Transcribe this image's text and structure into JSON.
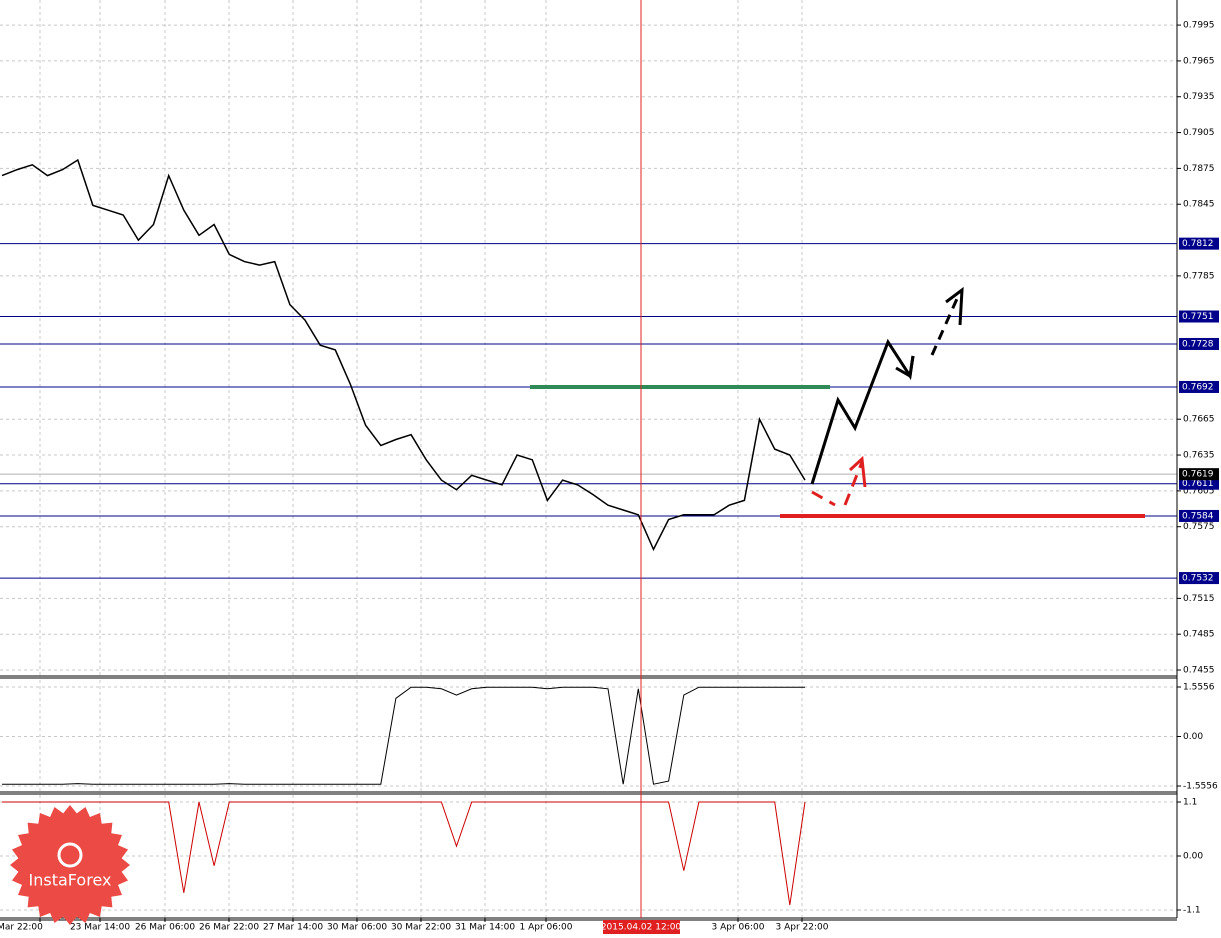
{
  "chart_data": [
    {
      "type": "line",
      "color": "#000000",
      "values": [
        0.7869,
        0.7874,
        0.7878,
        0.7869,
        0.7874,
        0.7882,
        0.7844,
        0.784,
        0.7836,
        0.7815,
        0.7828,
        0.7869,
        0.784,
        0.7819,
        0.7828,
        0.7803,
        0.7797,
        0.7794,
        0.7797,
        0.7761,
        0.7748,
        0.7727,
        0.7723,
        0.7694,
        0.766,
        0.7643,
        0.7648,
        0.7652,
        0.7631,
        0.7614,
        0.7606,
        0.7618,
        0.7614,
        0.761,
        0.7635,
        0.7631,
        0.7597,
        0.7614,
        0.761,
        0.7602,
        0.7593,
        0.7589,
        0.7585,
        0.7556,
        0.7581,
        0.7585,
        0.7585,
        0.7585,
        0.7593,
        0.7597,
        0.7665,
        0.764,
        0.7635,
        0.7614
      ],
      "ylim": [
        0.745,
        0.8016
      ],
      "yticks": [
        0.7995,
        0.7965,
        0.7935,
        0.7905,
        0.7875,
        0.7845,
        0.7785,
        0.7665,
        0.7635,
        0.7605,
        0.7575,
        0.7515,
        0.7485,
        0.7455
      ],
      "levels": [
        0.7812,
        0.7751,
        0.7728,
        0.7692,
        0.7611,
        0.7584,
        0.7532
      ],
      "level_color": "#00008b",
      "current_price": 0.7619,
      "highlights": [
        {
          "value": 0.7692,
          "color": "#2e8b57"
        },
        {
          "value": 0.7584,
          "color": "#e02020"
        }
      ],
      "grid": true
    },
    {
      "type": "line",
      "color": "#000000",
      "values": [
        -1.5,
        -1.5,
        -1.5,
        -1.5,
        -1.5,
        -1.48,
        -1.5,
        -1.5,
        -1.5,
        -1.5,
        -1.5,
        -1.5,
        -1.5,
        -1.5,
        -1.5,
        -1.48,
        -1.5,
        -1.5,
        -1.5,
        -1.5,
        -1.5,
        -1.5,
        -1.5,
        -1.5,
        -1.5,
        -1.5,
        1.2,
        1.55,
        1.55,
        1.5,
        1.3,
        1.5,
        1.55,
        1.55,
        1.55,
        1.55,
        1.5,
        1.55,
        1.55,
        1.55,
        1.5,
        -1.5,
        1.5,
        -1.5,
        -1.4,
        1.3,
        1.55,
        1.55,
        1.55,
        1.55,
        1.55,
        1.55,
        1.55,
        1.55
      ],
      "ylim": [
        -1.744,
        1.776
      ],
      "yticks": [
        1.5556,
        {
          "value": 0,
          "label": "0.00"
        },
        -1.5556
      ],
      "grid": true
    },
    {
      "type": "line",
      "color": "#cc0000",
      "values": [
        1.1,
        1.1,
        1.1,
        1.1,
        1.1,
        1.1,
        1.1,
        1.1,
        1.1,
        1.1,
        1.1,
        1.1,
        -0.75,
        1.1,
        -0.2,
        1.1,
        1.1,
        1.1,
        1.1,
        1.1,
        1.1,
        1.1,
        1.1,
        1.1,
        1.1,
        1.1,
        1.1,
        1.1,
        1.1,
        1.1,
        0.2,
        1.1,
        1.1,
        1.1,
        1.1,
        1.1,
        1.1,
        1.1,
        1.1,
        1.1,
        1.1,
        1.1,
        1.1,
        1.1,
        1.1,
        -0.3,
        1.1,
        1.1,
        1.1,
        1.1,
        1.1,
        1.1,
        -1.0,
        1.1
      ],
      "ylim": [
        -1.263,
        1.243
      ],
      "yticks": [
        1.1,
        {
          "value": 0,
          "label": "0.00"
        },
        -1.1
      ],
      "grid": true
    }
  ],
  "x_labels": [
    "Mar 22:00",
    "23 Mar 14:00",
    "26 Mar 06:00",
    "26 Mar 22:00",
    "27 Mar 14:00",
    "30 Mar 06:00",
    "30 Mar 22:00",
    "31 Mar 14:00",
    "1 Apr 06:00",
    "3 Apr 06:00",
    "3 Apr 22:00"
  ],
  "crosshair_label": "2015.04.02 12:00",
  "logo": "InstaForex"
}
